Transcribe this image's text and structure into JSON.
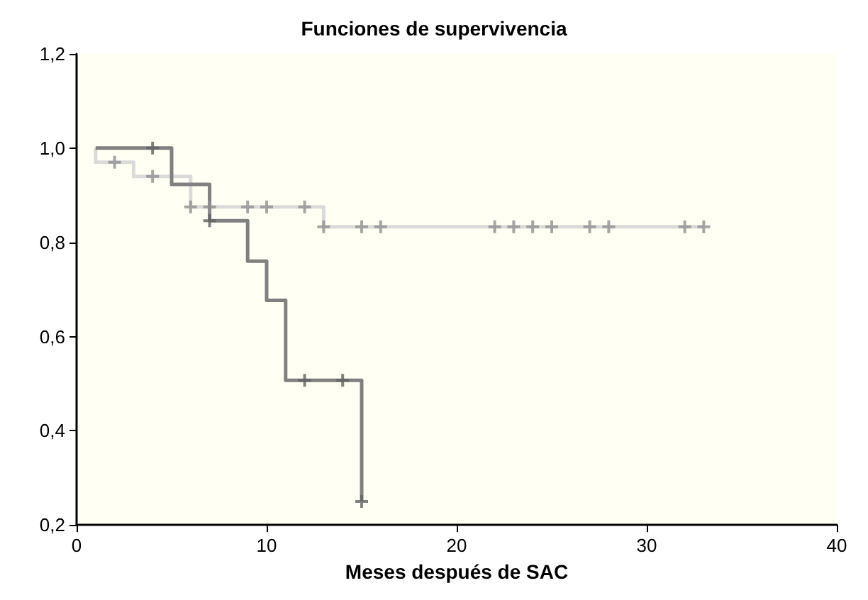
{
  "chart_data": {
    "type": "step",
    "title": "Funciones de supervivencia",
    "xlabel": "Meses después de SAC",
    "xlim": [
      0,
      40
    ],
    "xticks": [
      0,
      10,
      20,
      30,
      40
    ],
    "ylim": [
      0.2,
      1.2
    ],
    "yticks": [
      {
        "value": 0.2,
        "label": "0,2"
      },
      {
        "value": 0.4,
        "label": "0,4"
      },
      {
        "value": 0.6,
        "label": "0,6"
      },
      {
        "value": 0.8,
        "label": "0,8"
      },
      {
        "value": 1.0,
        "label": "1,0"
      },
      {
        "value": 1.2,
        "label": "1,2"
      }
    ],
    "grid": false,
    "marker": "none",
    "line_style": "solid",
    "series": [
      {
        "color": "#dadada",
        "x": [
          1,
          1,
          3,
          6,
          13,
          33
        ],
        "values": [
          1.0,
          0.97,
          0.94,
          0.875,
          0.833,
          0.833
        ]
      },
      {
        "color": "#808080",
        "x": [
          1,
          5,
          7,
          9,
          10,
          11,
          15
        ],
        "values": [
          1.0,
          0.923,
          0.846,
          0.76,
          0.677,
          0.507,
          0.25
        ]
      },
      {
        "type": "scatter",
        "marker": "cross",
        "color": "#909090",
        "x": [
          2,
          4,
          6,
          7,
          9,
          10,
          12,
          13,
          15,
          16,
          22,
          23,
          24,
          25,
          27,
          28,
          32,
          33
        ],
        "values": [
          0.97,
          0.94,
          0.875,
          0.875,
          0.875,
          0.875,
          0.875,
          0.833,
          0.833,
          0.833,
          0.833,
          0.833,
          0.833,
          0.833,
          0.833,
          0.833,
          0.833,
          0.833
        ]
      },
      {
        "type": "scatter",
        "marker": "cross",
        "color": "#606060",
        "x": [
          4,
          7,
          12,
          14,
          15
        ],
        "values": [
          1.0,
          0.846,
          0.507,
          0.507,
          0.25
        ]
      }
    ]
  }
}
